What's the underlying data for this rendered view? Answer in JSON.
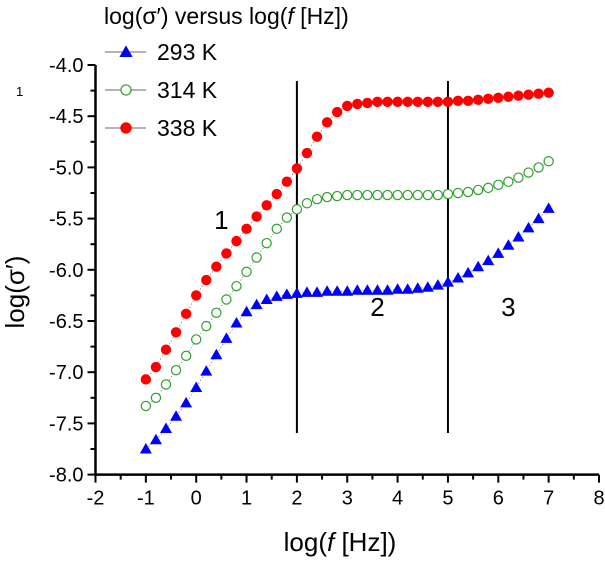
{
  "chart_data": {
    "type": "scatter",
    "title": "log(σ′) versus log(f [Hz])",
    "title_parts": {
      "prefix": "log(σ′) versus log(",
      "italic": "f",
      "suffix": " [Hz])"
    },
    "xlabel_parts": {
      "prefix": "log(",
      "italic": "f",
      "suffix": " [Hz])"
    },
    "ylabel": "log(σ′)",
    "xlim": [
      -2,
      8
    ],
    "ylim": [
      -8.0,
      -4.0
    ],
    "xticks": [
      "-2",
      "-1",
      "0",
      "1",
      "2",
      "3",
      "4",
      "5",
      "6",
      "7",
      "8"
    ],
    "yticks": [
      "-4.0",
      "-4.5",
      "-5.0",
      "-5.5",
      "-6.0",
      "-6.5",
      "-7.0",
      "-7.5",
      "-8.0"
    ],
    "grid": false,
    "legend_position": "top-left",
    "corner_label": "1",
    "region_labels": [
      {
        "text": "1",
        "x": 0.5,
        "y": -5.6
      },
      {
        "text": "2",
        "x": 3.6,
        "y": -6.45
      },
      {
        "text": "3",
        "x": 6.2,
        "y": -6.45
      }
    ],
    "vertical_lines": [
      2,
      5
    ],
    "x": [
      -1,
      -0.8,
      -0.6,
      -0.4,
      -0.2,
      0,
      0.2,
      0.4,
      0.6,
      0.8,
      1,
      1.2,
      1.4,
      1.6,
      1.8,
      2,
      2.2,
      2.4,
      2.6,
      2.8,
      3,
      3.2,
      3.4,
      3.6,
      3.8,
      4,
      4.2,
      4.4,
      4.6,
      4.8,
      5,
      5.2,
      5.4,
      5.6,
      5.8,
      6,
      6.2,
      6.4,
      6.6,
      6.8,
      7
    ],
    "series": [
      {
        "name": "293 K",
        "marker": "triangle",
        "color": "#0000ff",
        "values": [
          -7.75,
          -7.66,
          -7.55,
          -7.43,
          -7.3,
          -7.15,
          -6.99,
          -6.83,
          -6.67,
          -6.52,
          -6.41,
          -6.34,
          -6.29,
          -6.26,
          -6.24,
          -6.23,
          -6.22,
          -6.22,
          -6.21,
          -6.21,
          -6.21,
          -6.2,
          -6.2,
          -6.2,
          -6.2,
          -6.19,
          -6.19,
          -6.18,
          -6.17,
          -6.15,
          -6.12,
          -6.08,
          -6.03,
          -5.97,
          -5.91,
          -5.84,
          -5.76,
          -5.68,
          -5.59,
          -5.5,
          -5.4
        ]
      },
      {
        "name": "314 K",
        "marker": "open-circle",
        "color": "#2ca02c",
        "values": [
          -7.33,
          -7.25,
          -7.12,
          -6.98,
          -6.84,
          -6.68,
          -6.55,
          -6.42,
          -6.29,
          -6.16,
          -6.02,
          -5.88,
          -5.74,
          -5.6,
          -5.49,
          -5.41,
          -5.35,
          -5.31,
          -5.29,
          -5.28,
          -5.27,
          -5.27,
          -5.27,
          -5.27,
          -5.27,
          -5.27,
          -5.27,
          -5.27,
          -5.27,
          -5.27,
          -5.26,
          -5.25,
          -5.24,
          -5.22,
          -5.2,
          -5.17,
          -5.14,
          -5.1,
          -5.05,
          -5.0,
          -4.94
        ]
      },
      {
        "name": "338 K",
        "marker": "filled-circle",
        "color": "#ff0000",
        "values": [
          -7.07,
          -6.95,
          -6.78,
          -6.61,
          -6.43,
          -6.25,
          -6.1,
          -5.97,
          -5.84,
          -5.72,
          -5.6,
          -5.48,
          -5.37,
          -5.26,
          -5.14,
          -5.01,
          -4.86,
          -4.7,
          -4.56,
          -4.46,
          -4.4,
          -4.38,
          -4.37,
          -4.36,
          -4.36,
          -4.36,
          -4.36,
          -4.36,
          -4.36,
          -4.36,
          -4.36,
          -4.35,
          -4.35,
          -4.34,
          -4.33,
          -4.32,
          -4.31,
          -4.3,
          -4.29,
          -4.28,
          -4.27
        ]
      }
    ]
  }
}
